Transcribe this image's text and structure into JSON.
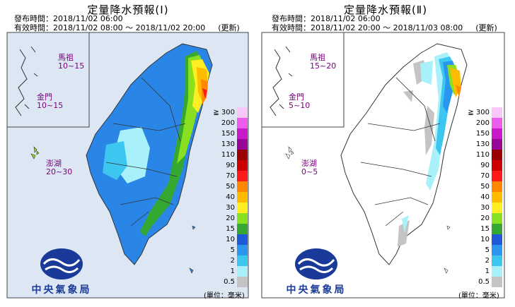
{
  "panels": [
    {
      "title": "定量降水預報(Ⅰ)",
      "issued_label": "發布時間：",
      "issued": "2018/11/02 06:00",
      "valid_label": "有效時間：",
      "valid": "2018/11/02 08:00 ～ 2018/11/02 20:00",
      "updated": "(更新)",
      "islands": [
        {
          "name": "馬祖",
          "range": "10~15"
        },
        {
          "name": "金門",
          "range": "10~15"
        },
        {
          "name": "澎湖",
          "range": "20~30"
        }
      ],
      "logo_text": "中央氣象局",
      "unit": "(單位：毫米)"
    },
    {
      "title": "定量降水預報(Ⅱ)",
      "issued_label": "發布時間：",
      "issued": "2018/11/02 06:00",
      "valid_label": "有效時間：",
      "valid": "2018/11/02 20:00 ～ 2018/11/03 08:00",
      "updated": "(更新)",
      "islands": [
        {
          "name": "馬祖",
          "range": "15~20"
        },
        {
          "name": "金門",
          "range": "5~10"
        },
        {
          "name": "澎湖",
          "range": "0~5"
        }
      ],
      "logo_text": "中央氣象局",
      "unit": "(單位：毫米)"
    }
  ],
  "legend": [
    {
      "label": "≧ 300",
      "color": "#f7c8f7"
    },
    {
      "label": "200",
      "color": "#ee5cee"
    },
    {
      "label": "150",
      "color": "#c81ac8"
    },
    {
      "label": "130",
      "color": "#980898"
    },
    {
      "label": "110",
      "color": "#9a0000"
    },
    {
      "label": "90",
      "color": "#cc0000"
    },
    {
      "label": "70",
      "color": "#ff1a1a"
    },
    {
      "label": "50",
      "color": "#ff8800"
    },
    {
      "label": "40",
      "color": "#ffbb00"
    },
    {
      "label": "30",
      "color": "#ffee22"
    },
    {
      "label": "20",
      "color": "#88e020"
    },
    {
      "label": "15",
      "color": "#34a830"
    },
    {
      "label": "10",
      "color": "#1e5ad8"
    },
    {
      "label": "5",
      "color": "#2a96ee"
    },
    {
      "label": "2",
      "color": "#3cc6f0"
    },
    {
      "label": "1",
      "color": "#a8f0fa"
    },
    {
      "label": "0.5",
      "color": "#c4c4c4"
    }
  ]
}
